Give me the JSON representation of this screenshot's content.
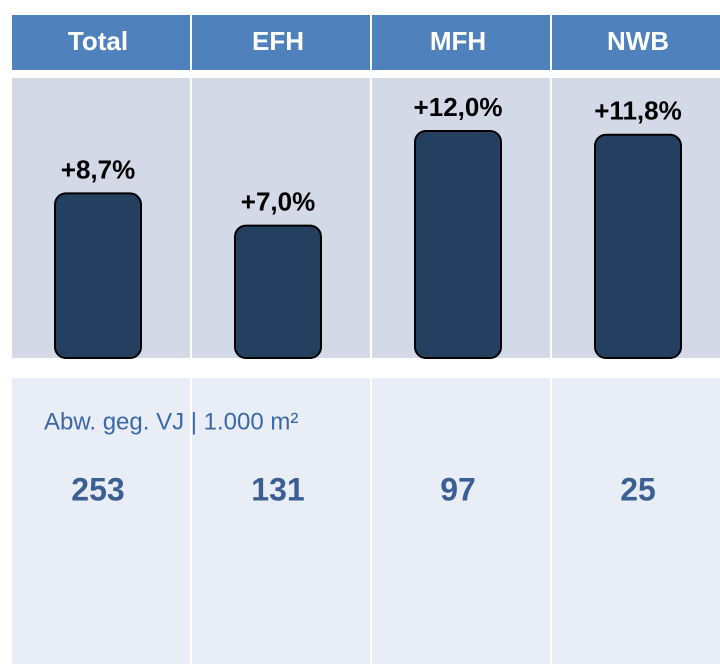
{
  "chart_data": {
    "type": "bar",
    "categories": [
      "Total",
      "EFH",
      "MFH",
      "NWB"
    ],
    "values": [
      8.7,
      7.0,
      12.0,
      11.8
    ],
    "value_labels": [
      "+8,7%",
      "+7,0%",
      "+12,0%",
      "+11,8%"
    ],
    "color": "#243f60",
    "subtitle": "Abw. geg. VJ | 1.000 m²",
    "totals": [
      253,
      131,
      97,
      25
    ]
  }
}
